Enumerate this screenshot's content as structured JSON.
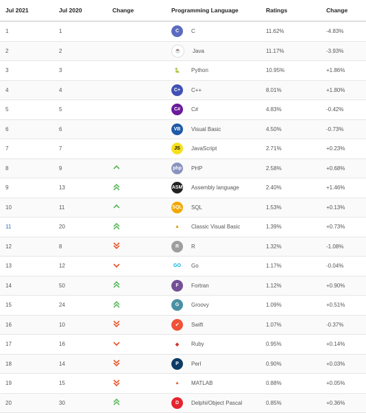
{
  "headers": [
    "Jul 2021",
    "Jul 2020",
    "Change",
    "Programming Language",
    "Ratings",
    "Change"
  ],
  "colors": {
    "up": "#5cb85c",
    "down": "#e8562a"
  },
  "rows": [
    {
      "jul2021": "1",
      "jul2020": "1",
      "change": "",
      "icon": "c-icon",
      "lang": "C",
      "rating": "11.62%",
      "delta": "-4.83%"
    },
    {
      "jul2021": "2",
      "jul2020": "2",
      "change": "",
      "icon": "java-icon",
      "lang": "Java",
      "rating": "11.17%",
      "delta": "-3.93%"
    },
    {
      "jul2021": "3",
      "jul2020": "3",
      "change": "",
      "icon": "python-icon",
      "lang": "Python",
      "rating": "10.95%",
      "delta": "+1.86%"
    },
    {
      "jul2021": "4",
      "jul2020": "4",
      "change": "",
      "icon": "cpp-icon",
      "lang": "C++",
      "rating": "8.01%",
      "delta": "+1.80%"
    },
    {
      "jul2021": "5",
      "jul2020": "5",
      "change": "",
      "icon": "csharp-icon",
      "lang": "C#",
      "rating": "4.83%",
      "delta": "-0.42%"
    },
    {
      "jul2021": "6",
      "jul2020": "6",
      "change": "",
      "icon": "visual-basic-icon",
      "lang": "Visual Basic",
      "rating": "4.50%",
      "delta": "-0.73%"
    },
    {
      "jul2021": "7",
      "jul2020": "7",
      "change": "",
      "icon": "javascript-icon",
      "lang": "JavaScript",
      "rating": "2.71%",
      "delta": "+0.23%"
    },
    {
      "jul2021": "8",
      "jul2020": "9",
      "change": "up",
      "icon": "php-icon",
      "lang": "PHP",
      "rating": "2.58%",
      "delta": "+0.68%"
    },
    {
      "jul2021": "9",
      "jul2020": "13",
      "change": "up2",
      "icon": "assembly-icon",
      "lang": "Assembly language",
      "rating": "2.40%",
      "delta": "+1.46%"
    },
    {
      "jul2021": "10",
      "jul2020": "11",
      "change": "up",
      "icon": "sql-icon",
      "lang": "SQL",
      "rating": "1.53%",
      "delta": "+0.13%"
    },
    {
      "jul2021": "11",
      "jul2020": "20",
      "change": "up2",
      "icon": "classic-vb-icon",
      "lang": "Classic Visual Basic",
      "rating": "1.39%",
      "delta": "+0.73%",
      "link": true
    },
    {
      "jul2021": "12",
      "jul2020": "8",
      "change": "down2",
      "icon": "r-icon",
      "lang": "R",
      "rating": "1.32%",
      "delta": "-1.08%"
    },
    {
      "jul2021": "13",
      "jul2020": "12",
      "change": "down",
      "icon": "go-icon",
      "lang": "Go",
      "rating": "1.17%",
      "delta": "-0.04%"
    },
    {
      "jul2021": "14",
      "jul2020": "50",
      "change": "up2",
      "icon": "fortran-icon",
      "lang": "Fortran",
      "rating": "1.12%",
      "delta": "+0.90%"
    },
    {
      "jul2021": "15",
      "jul2020": "24",
      "change": "up2",
      "icon": "groovy-icon",
      "lang": "Groovy",
      "rating": "1.09%",
      "delta": "+0.51%"
    },
    {
      "jul2021": "16",
      "jul2020": "10",
      "change": "down2",
      "icon": "swift-icon",
      "lang": "Swift",
      "rating": "1.07%",
      "delta": "-0.37%"
    },
    {
      "jul2021": "17",
      "jul2020": "16",
      "change": "down",
      "icon": "ruby-icon",
      "lang": "Ruby",
      "rating": "0.95%",
      "delta": "+0.14%"
    },
    {
      "jul2021": "18",
      "jul2020": "14",
      "change": "down2",
      "icon": "perl-icon",
      "lang": "Perl",
      "rating": "0.90%",
      "delta": "+0.03%"
    },
    {
      "jul2021": "19",
      "jul2020": "15",
      "change": "down2",
      "icon": "matlab-icon",
      "lang": "MATLAB",
      "rating": "0.88%",
      "delta": "+0.05%"
    },
    {
      "jul2021": "20",
      "jul2020": "30",
      "change": "up2",
      "icon": "delphi-icon",
      "lang": "Delphi/Object Pascal",
      "rating": "0.85%",
      "delta": "+0.36%"
    }
  ]
}
